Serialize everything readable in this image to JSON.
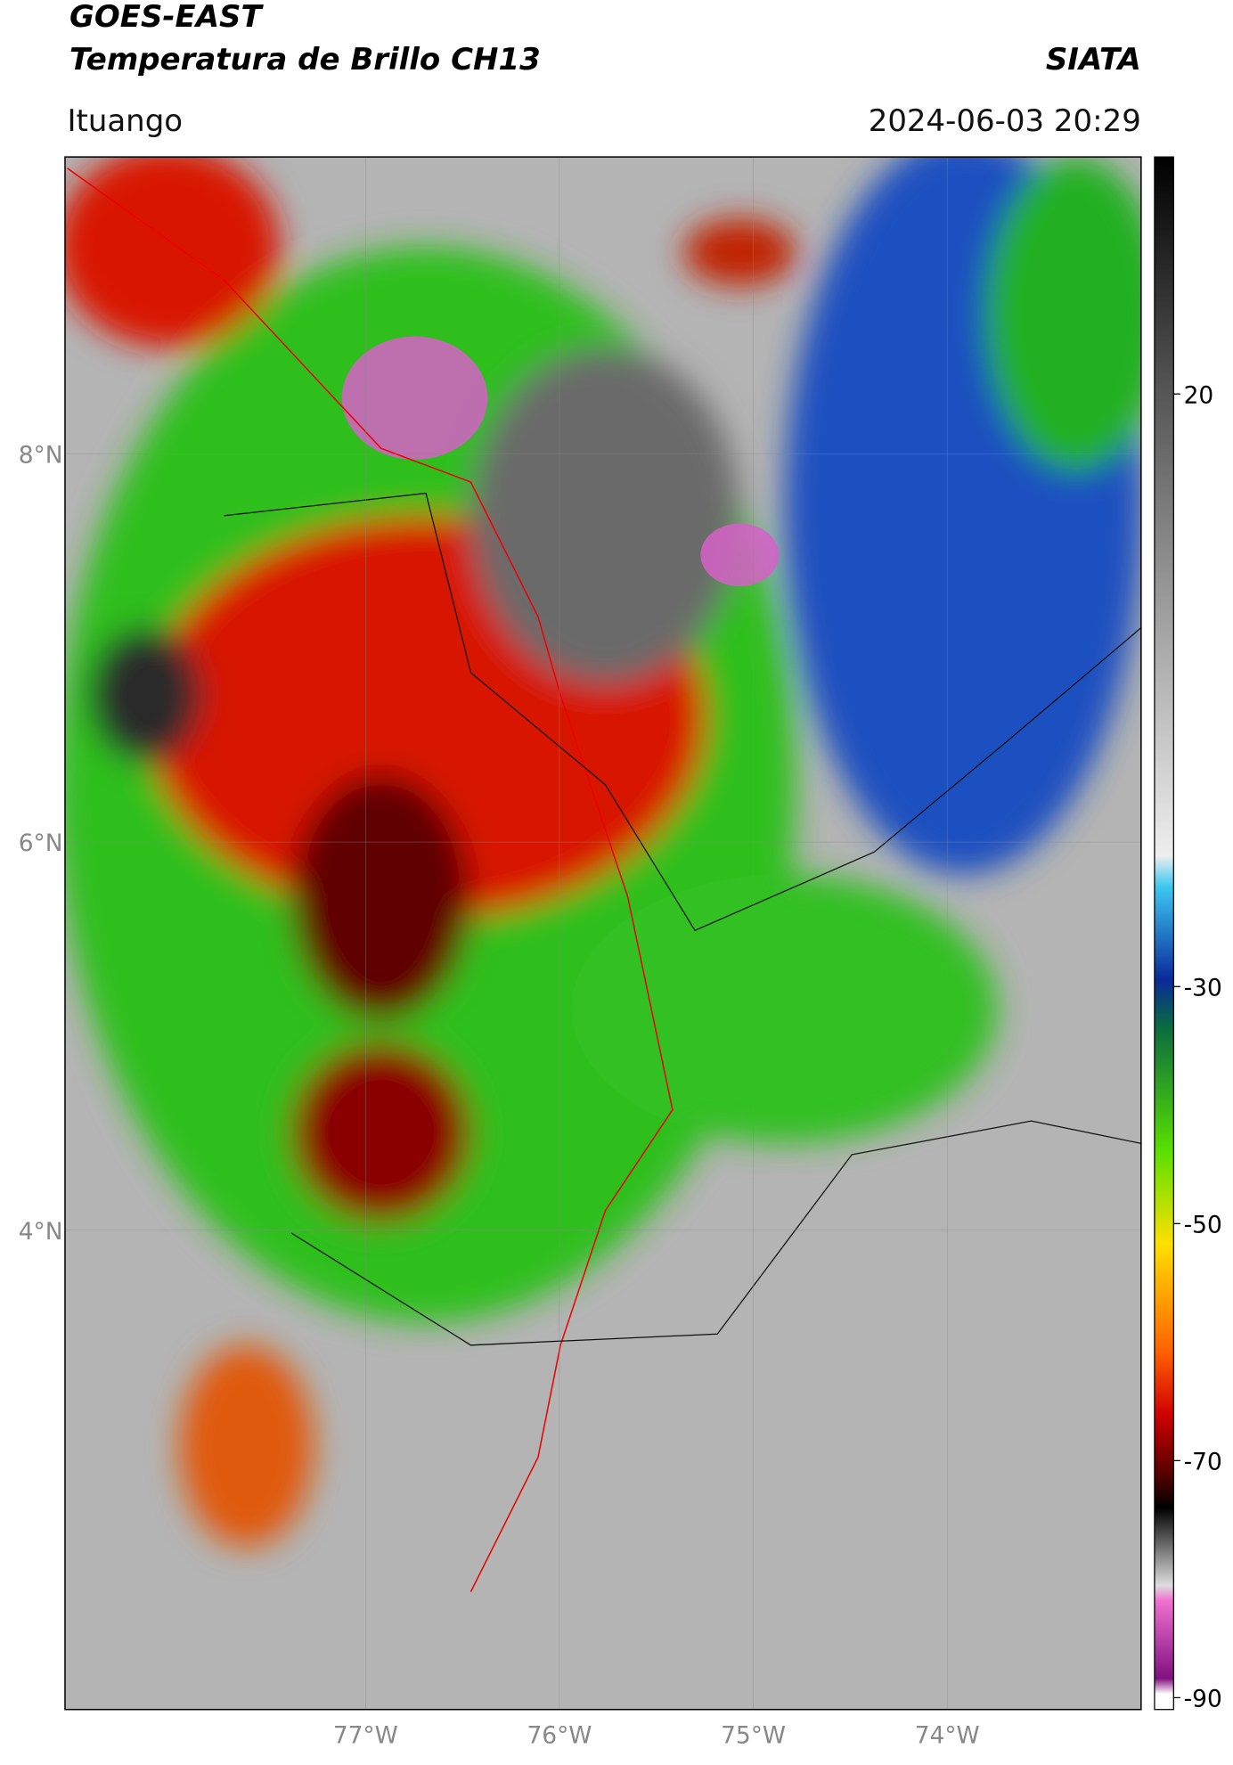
{
  "header": {
    "title_line1": "GOES-EAST",
    "title_line2": "Temperatura de Brillo CH13",
    "agency": "SIATA",
    "location": "Ituango",
    "datetime": "2024-06-03 20:29"
  },
  "map": {
    "lon_lim": [
      -78.55,
      -73.0
    ],
    "lat_lim": [
      1.53,
      9.53
    ],
    "lon_ticks": [
      {
        "value": -77,
        "label": "77°W"
      },
      {
        "value": -76,
        "label": "76°W"
      },
      {
        "value": -75,
        "label": "75°W"
      },
      {
        "value": -74,
        "label": "74°W"
      }
    ],
    "lat_ticks": [
      {
        "value": 8,
        "label": "8°N"
      },
      {
        "value": 6,
        "label": "6°N"
      },
      {
        "value": 4,
        "label": "4°N"
      }
    ]
  },
  "colorbar": {
    "lim": [
      -91,
      40
    ],
    "ticks": [
      20,
      -30,
      -50,
      -70,
      -90
    ]
  }
}
